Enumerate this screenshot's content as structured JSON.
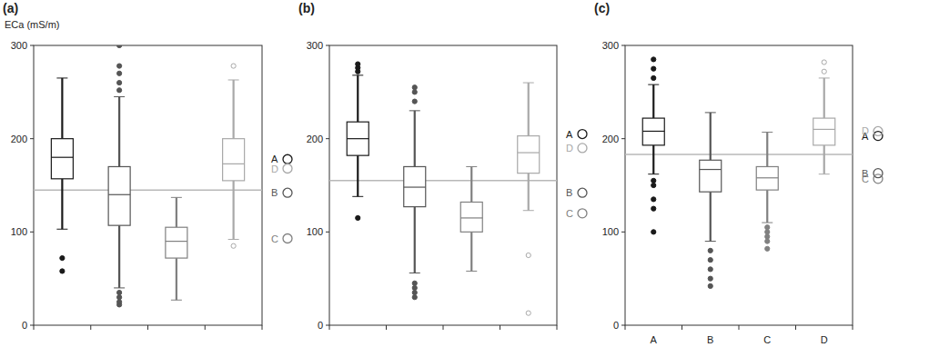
{
  "chart_data": [
    {
      "type": "box",
      "title": "(a)",
      "y_label": "ECa (mS/m)",
      "categories": [
        null,
        null,
        null,
        null
      ],
      "colors": [
        "#1a1a1a",
        "#555555",
        "#808080",
        "#a8a8a8"
      ],
      "ylim": [
        0,
        300
      ],
      "yticks": [
        0,
        100,
        200,
        300
      ],
      "boxes": [
        {
          "whisker_low": 103,
          "q1": 157,
          "median": 180,
          "q3": 200,
          "whisker_high": 265,
          "outliers": [
            58,
            72
          ]
        },
        {
          "whisker_low": 40,
          "q1": 107,
          "median": 140,
          "q3": 170,
          "whisker_high": 245,
          "outliers": [
            22,
            25,
            30,
            35,
            252,
            260,
            270,
            278,
            300
          ]
        },
        {
          "whisker_low": 27,
          "q1": 72,
          "median": 90,
          "q3": 105,
          "whisker_high": 137,
          "outliers": []
        },
        {
          "whisker_low": 92,
          "q1": 155,
          "median": 173,
          "q3": 200,
          "whisker_high": 263,
          "outliers": [
            85,
            278
          ]
        }
      ],
      "reference_line": 145,
      "means": [
        178,
        142,
        93,
        168
      ],
      "mean_labels": [
        "A",
        "B",
        "C",
        "D"
      ]
    },
    {
      "type": "box",
      "title": "(b)",
      "categories": [
        null,
        null,
        null,
        null
      ],
      "colors": [
        "#1a1a1a",
        "#555555",
        "#808080",
        "#a8a8a8"
      ],
      "ylim": [
        0,
        300
      ],
      "yticks": [
        0,
        100,
        200,
        300
      ],
      "boxes": [
        {
          "whisker_low": 138,
          "q1": 182,
          "median": 200,
          "q3": 218,
          "whisker_high": 268,
          "outliers": [
            115,
            272,
            276,
            280
          ]
        },
        {
          "whisker_low": 56,
          "q1": 127,
          "median": 148,
          "q3": 170,
          "whisker_high": 230,
          "outliers": [
            30,
            35,
            40,
            45,
            240,
            250,
            255
          ]
        },
        {
          "whisker_low": 58,
          "q1": 100,
          "median": 115,
          "q3": 132,
          "whisker_high": 170,
          "outliers": []
        },
        {
          "whisker_low": 123,
          "q1": 163,
          "median": 185,
          "q3": 203,
          "whisker_high": 260,
          "outliers": [
            13,
            75
          ]
        }
      ],
      "reference_line": 155,
      "means": [
        205,
        142,
        120,
        190
      ],
      "mean_labels": [
        "A",
        "B",
        "C",
        "D"
      ]
    },
    {
      "type": "box",
      "title": "(c)",
      "categories": [
        "A",
        "B",
        "C",
        "D"
      ],
      "colors": [
        "#1a1a1a",
        "#555555",
        "#808080",
        "#a8a8a8"
      ],
      "ylim": [
        0,
        300
      ],
      "yticks": [
        0,
        100,
        200,
        300
      ],
      "boxes": [
        {
          "whisker_low": 162,
          "q1": 193,
          "median": 208,
          "q3": 222,
          "whisker_high": 258,
          "outliers": [
            100,
            125,
            135,
            150,
            155,
            265,
            275,
            285
          ]
        },
        {
          "whisker_low": 90,
          "q1": 143,
          "median": 167,
          "q3": 177,
          "whisker_high": 228,
          "outliers": [
            42,
            50,
            60,
            70,
            80
          ]
        },
        {
          "whisker_low": 110,
          "q1": 145,
          "median": 158,
          "q3": 170,
          "whisker_high": 207,
          "outliers": [
            82,
            90,
            95,
            100,
            105
          ]
        },
        {
          "whisker_low": 162,
          "q1": 193,
          "median": 210,
          "q3": 222,
          "whisker_high": 265,
          "outliers": [
            272,
            282
          ]
        }
      ],
      "reference_line": 183,
      "means": [
        203,
        163,
        157,
        208
      ],
      "mean_labels": [
        "A",
        "B",
        "C",
        "D"
      ]
    }
  ]
}
